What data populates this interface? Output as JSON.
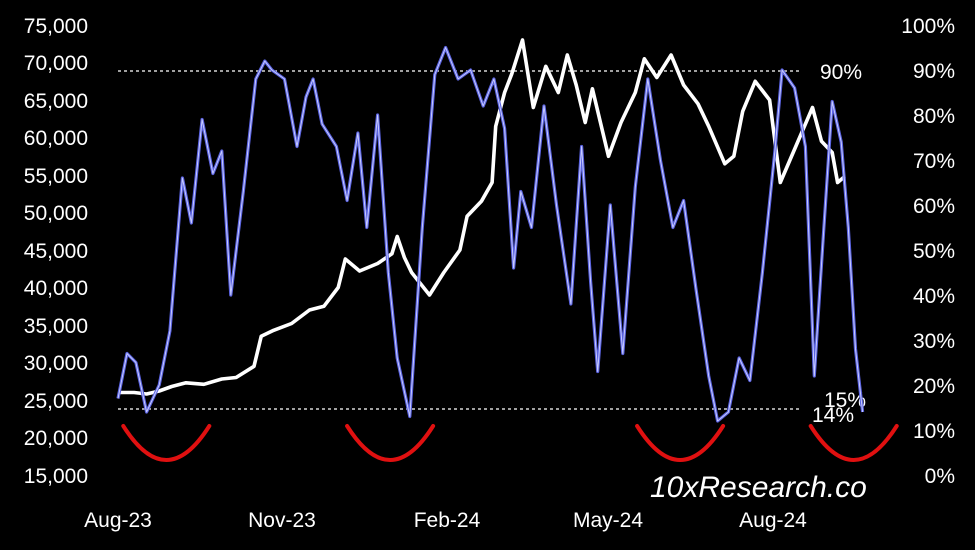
{
  "watermark": "10xResearch.co",
  "chart_data": {
    "type": "line",
    "title": "",
    "xlabel": "",
    "ylabel": "",
    "x_ticks": [
      "Aug-23",
      "Nov-23",
      "Feb-24",
      "May-24",
      "Aug-24"
    ],
    "left_axis": {
      "ylim": [
        15000,
        75000
      ],
      "ticks": [
        "15,000",
        "20,000",
        "25,000",
        "30,000",
        "35,000",
        "40,000",
        "45,000",
        "50,000",
        "55,000",
        "60,000",
        "65,000",
        "70,000",
        "75,000"
      ]
    },
    "right_axis": {
      "ylim": [
        0,
        100
      ],
      "ticks": [
        "0%",
        "10%",
        "20%",
        "30%",
        "40%",
        "50%",
        "60%",
        "70%",
        "80%",
        "90%",
        "100%"
      ]
    },
    "reference_lines": [
      {
        "value": 90,
        "axis": "right",
        "label": "90%"
      },
      {
        "value": 15,
        "axis": "right",
        "label": "15%"
      }
    ],
    "annotations": [
      {
        "text": "14%",
        "x": "2024-09-08",
        "y": 14,
        "axis": "right"
      }
    ],
    "highlight_color": "#e01010",
    "highlight_marks": [
      {
        "shape": "arc-smile",
        "x": "2023-08-28"
      },
      {
        "shape": "arc-smile",
        "x": "2023-12-31"
      },
      {
        "shape": "arc-smile",
        "x": "2024-06-10"
      },
      {
        "shape": "arc-smile",
        "x": "2024-09-15"
      }
    ],
    "series": [
      {
        "axis": "left",
        "color": "#ffffff",
        "points": [
          [
            "2023-08-01",
            26000
          ],
          [
            "2023-08-10",
            26000
          ],
          [
            "2023-08-17",
            25800
          ],
          [
            "2023-08-24",
            26200
          ],
          [
            "2023-08-31",
            26800
          ],
          [
            "2023-09-08",
            27300
          ],
          [
            "2023-09-18",
            27100
          ],
          [
            "2023-09-28",
            27800
          ],
          [
            "2023-10-06",
            28000
          ],
          [
            "2023-10-16",
            29500
          ],
          [
            "2023-10-20",
            33500
          ],
          [
            "2023-10-27",
            34300
          ],
          [
            "2023-11-06",
            35200
          ],
          [
            "2023-11-16",
            37000
          ],
          [
            "2023-11-24",
            37500
          ],
          [
            "2023-12-02",
            40000
          ],
          [
            "2023-12-06",
            43800
          ],
          [
            "2023-12-14",
            42200
          ],
          [
            "2023-12-24",
            43200
          ],
          [
            "2024-01-01",
            44500
          ],
          [
            "2024-01-04",
            46800
          ],
          [
            "2024-01-08",
            44000
          ],
          [
            "2024-01-12",
            42000
          ],
          [
            "2024-01-22",
            39000
          ],
          [
            "2024-01-30",
            42000
          ],
          [
            "2024-02-08",
            45000
          ],
          [
            "2024-02-12",
            49500
          ],
          [
            "2024-02-20",
            51500
          ],
          [
            "2024-02-26",
            54000
          ],
          [
            "2024-02-28",
            61500
          ],
          [
            "2024-03-04",
            66000
          ],
          [
            "2024-03-08",
            68500
          ],
          [
            "2024-03-14",
            73000
          ],
          [
            "2024-03-20",
            64000
          ],
          [
            "2024-03-27",
            69500
          ],
          [
            "2024-04-03",
            66000
          ],
          [
            "2024-04-08",
            71000
          ],
          [
            "2024-04-13",
            67000
          ],
          [
            "2024-04-18",
            62000
          ],
          [
            "2024-04-22",
            66500
          ],
          [
            "2024-05-01",
            57500
          ],
          [
            "2024-05-08",
            62000
          ],
          [
            "2024-05-16",
            66000
          ],
          [
            "2024-05-21",
            70500
          ],
          [
            "2024-05-28",
            68000
          ],
          [
            "2024-06-05",
            71000
          ],
          [
            "2024-06-12",
            67000
          ],
          [
            "2024-06-20",
            64500
          ],
          [
            "2024-06-26",
            61500
          ],
          [
            "2024-07-05",
            56500
          ],
          [
            "2024-07-10",
            57500
          ],
          [
            "2024-07-15",
            63500
          ],
          [
            "2024-07-22",
            67500
          ],
          [
            "2024-07-30",
            65000
          ],
          [
            "2024-08-05",
            54000
          ],
          [
            "2024-08-14",
            59000
          ],
          [
            "2024-08-23",
            64000
          ],
          [
            "2024-08-28",
            59500
          ],
          [
            "2024-09-03",
            58000
          ],
          [
            "2024-09-06",
            54000
          ],
          [
            "2024-09-10",
            54800
          ]
        ]
      },
      {
        "axis": "right",
        "color": "#5b63e0",
        "points": [
          [
            "2023-08-01",
            17
          ],
          [
            "2023-08-06",
            27
          ],
          [
            "2023-08-11",
            25
          ],
          [
            "2023-08-17",
            14
          ],
          [
            "2023-08-24",
            20
          ],
          [
            "2023-08-30",
            32
          ],
          [
            "2023-09-06",
            66
          ],
          [
            "2023-09-11",
            56
          ],
          [
            "2023-09-17",
            79
          ],
          [
            "2023-09-23",
            67
          ],
          [
            "2023-09-28",
            72
          ],
          [
            "2023-10-03",
            40
          ],
          [
            "2023-10-10",
            63
          ],
          [
            "2023-10-17",
            88
          ],
          [
            "2023-10-22",
            92
          ],
          [
            "2023-10-26",
            90
          ],
          [
            "2023-11-02",
            88
          ],
          [
            "2023-11-09",
            73
          ],
          [
            "2023-11-14",
            84
          ],
          [
            "2023-11-18",
            88
          ],
          [
            "2023-11-23",
            78
          ],
          [
            "2023-12-01",
            73
          ],
          [
            "2023-12-07",
            61
          ],
          [
            "2023-12-13",
            76
          ],
          [
            "2023-12-18",
            55
          ],
          [
            "2023-12-24",
            80
          ],
          [
            "2023-12-30",
            45
          ],
          [
            "2024-01-04",
            26
          ],
          [
            "2024-01-11",
            13
          ],
          [
            "2024-01-18",
            55
          ],
          [
            "2024-01-25",
            89
          ],
          [
            "2024-01-31",
            95
          ],
          [
            "2024-02-07",
            88
          ],
          [
            "2024-02-14",
            90
          ],
          [
            "2024-02-21",
            82
          ],
          [
            "2024-02-27",
            88
          ],
          [
            "2024-03-04",
            77
          ],
          [
            "2024-03-09",
            46
          ],
          [
            "2024-03-13",
            63
          ],
          [
            "2024-03-19",
            55
          ],
          [
            "2024-03-26",
            82
          ],
          [
            "2024-04-02",
            60
          ],
          [
            "2024-04-10",
            38
          ],
          [
            "2024-04-16",
            73
          ],
          [
            "2024-04-21",
            43
          ],
          [
            "2024-04-25",
            23
          ],
          [
            "2024-05-02",
            60
          ],
          [
            "2024-05-09",
            27
          ],
          [
            "2024-05-16",
            64
          ],
          [
            "2024-05-23",
            88
          ],
          [
            "2024-05-30",
            70
          ],
          [
            "2024-06-06",
            55
          ],
          [
            "2024-06-12",
            61
          ],
          [
            "2024-06-19",
            41
          ],
          [
            "2024-06-26",
            22
          ],
          [
            "2024-07-01",
            12
          ],
          [
            "2024-07-07",
            14
          ],
          [
            "2024-07-13",
            26
          ],
          [
            "2024-07-19",
            21
          ],
          [
            "2024-07-26",
            45
          ],
          [
            "2024-08-02",
            72
          ],
          [
            "2024-08-06",
            90
          ],
          [
            "2024-08-13",
            86
          ],
          [
            "2024-08-19",
            73
          ],
          [
            "2024-08-24",
            22
          ],
          [
            "2024-08-29",
            53
          ],
          [
            "2024-09-03",
            83
          ],
          [
            "2024-09-08",
            74
          ],
          [
            "2024-09-12",
            55
          ],
          [
            "2024-09-16",
            28
          ],
          [
            "2024-09-20",
            14
          ]
        ]
      }
    ]
  }
}
